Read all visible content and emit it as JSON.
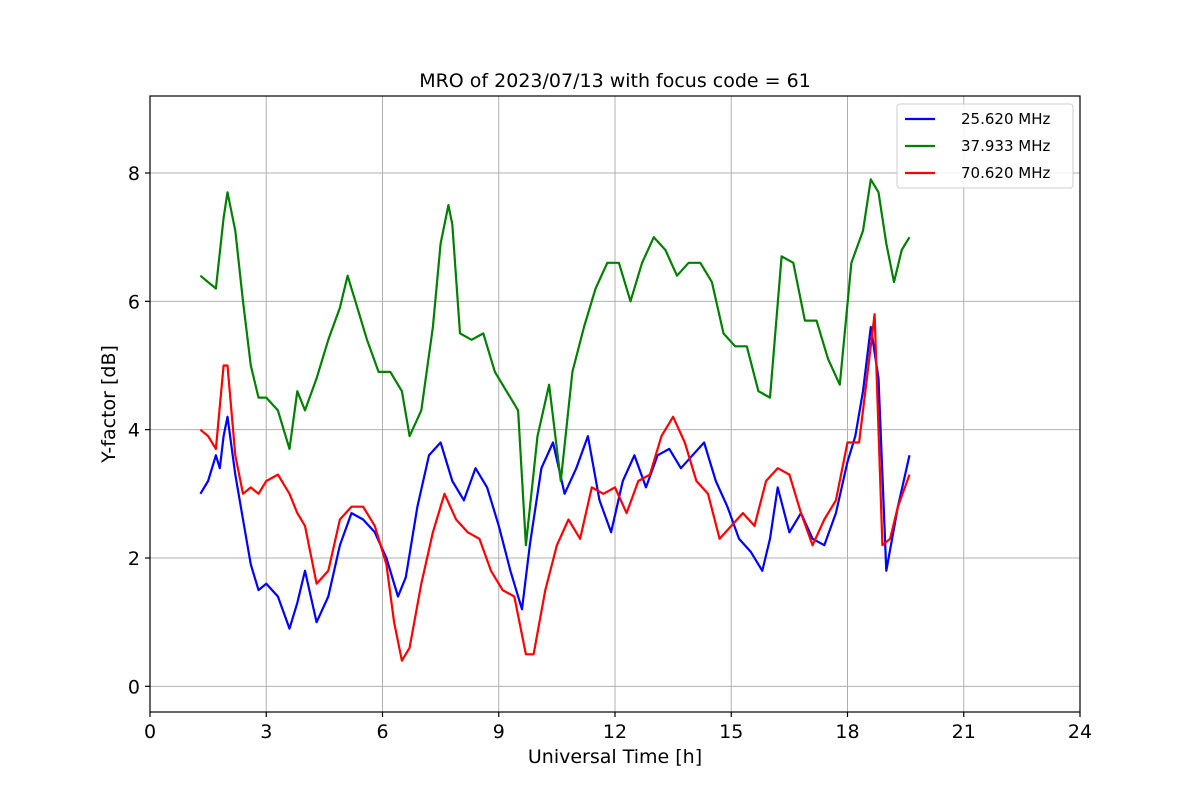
{
  "chart_data": {
    "type": "line",
    "title": "MRO of 2023/07/13 with focus code = 61",
    "xlabel": "Universal Time [h]",
    "ylabel": "Y-factor [dB]",
    "xlim": [
      0,
      24
    ],
    "ylim": [
      -0.4,
      9.2
    ],
    "xticks": [
      0,
      3,
      6,
      9,
      12,
      15,
      18,
      21,
      24
    ],
    "yticks": [
      0,
      2,
      4,
      6,
      8
    ],
    "grid": true,
    "legend_position": "top-right",
    "series": [
      {
        "name": "25.620 MHz",
        "color": "#0000ff",
        "x": [
          1.3,
          1.5,
          1.7,
          1.8,
          1.9,
          2.0,
          2.2,
          2.4,
          2.6,
          2.8,
          3.0,
          3.3,
          3.6,
          3.8,
          4.0,
          4.3,
          4.6,
          4.9,
          5.2,
          5.5,
          5.8,
          6.1,
          6.4,
          6.6,
          6.9,
          7.2,
          7.5,
          7.8,
          8.1,
          8.4,
          8.7,
          9.0,
          9.3,
          9.6,
          9.8,
          10.1,
          10.4,
          10.7,
          11.0,
          11.3,
          11.6,
          11.9,
          12.2,
          12.5,
          12.8,
          13.1,
          13.4,
          13.7,
          14.0,
          14.3,
          14.6,
          14.9,
          15.2,
          15.5,
          15.8,
          16.0,
          16.2,
          16.5,
          16.8,
          17.1,
          17.4,
          17.7,
          18.0,
          18.2,
          18.4,
          18.6,
          18.8,
          19.0,
          19.3,
          19.6
        ],
        "y": [
          3.0,
          3.2,
          3.6,
          3.4,
          3.9,
          4.2,
          3.3,
          2.6,
          1.9,
          1.5,
          1.6,
          1.4,
          0.9,
          1.3,
          1.8,
          1.0,
          1.4,
          2.2,
          2.7,
          2.6,
          2.4,
          2.0,
          1.4,
          1.7,
          2.8,
          3.6,
          3.8,
          3.2,
          2.9,
          3.4,
          3.1,
          2.5,
          1.8,
          1.2,
          2.2,
          3.4,
          3.8,
          3.0,
          3.4,
          3.9,
          2.9,
          2.4,
          3.2,
          3.6,
          3.1,
          3.6,
          3.7,
          3.4,
          3.6,
          3.8,
          3.2,
          2.8,
          2.3,
          2.1,
          1.8,
          2.3,
          3.1,
          2.4,
          2.7,
          2.3,
          2.2,
          2.7,
          3.5,
          3.9,
          4.6,
          5.6,
          4.8,
          1.8,
          2.8,
          3.6
        ]
      },
      {
        "name": "37.933 MHz",
        "color": "#008000",
        "x": [
          1.3,
          1.5,
          1.7,
          1.9,
          2.0,
          2.2,
          2.4,
          2.6,
          2.8,
          3.0,
          3.3,
          3.6,
          3.8,
          4.0,
          4.3,
          4.6,
          4.9,
          5.1,
          5.3,
          5.6,
          5.9,
          6.2,
          6.5,
          6.7,
          7.0,
          7.3,
          7.5,
          7.7,
          7.8,
          8.0,
          8.3,
          8.6,
          8.9,
          9.2,
          9.5,
          9.7,
          10.0,
          10.3,
          10.6,
          10.9,
          11.2,
          11.5,
          11.8,
          12.1,
          12.4,
          12.7,
          13.0,
          13.3,
          13.6,
          13.9,
          14.2,
          14.5,
          14.8,
          15.1,
          15.4,
          15.7,
          16.0,
          16.3,
          16.6,
          16.9,
          17.2,
          17.5,
          17.8,
          18.1,
          18.4,
          18.6,
          18.8,
          19.0,
          19.2,
          19.4,
          19.6
        ],
        "y": [
          6.4,
          6.3,
          6.2,
          7.3,
          7.7,
          7.1,
          6.0,
          5.0,
          4.5,
          4.5,
          4.3,
          3.7,
          4.6,
          4.3,
          4.8,
          5.4,
          5.9,
          6.4,
          6.0,
          5.4,
          4.9,
          4.9,
          4.6,
          3.9,
          4.3,
          5.6,
          6.9,
          7.5,
          7.2,
          5.5,
          5.4,
          5.5,
          4.9,
          4.6,
          4.3,
          2.2,
          3.9,
          4.7,
          3.2,
          4.9,
          5.6,
          6.2,
          6.6,
          6.6,
          6.0,
          6.6,
          7.0,
          6.8,
          6.4,
          6.6,
          6.6,
          6.3,
          5.5,
          5.3,
          5.3,
          4.6,
          4.5,
          6.7,
          6.6,
          5.7,
          5.7,
          5.1,
          4.7,
          6.6,
          7.1,
          7.9,
          7.7,
          6.9,
          6.3,
          6.8,
          7.0
        ]
      },
      {
        "name": "70.620 MHz",
        "color": "#ff0000",
        "x": [
          1.3,
          1.5,
          1.7,
          1.9,
          2.0,
          2.2,
          2.4,
          2.6,
          2.8,
          3.0,
          3.3,
          3.6,
          3.8,
          4.0,
          4.3,
          4.6,
          4.9,
          5.2,
          5.5,
          5.8,
          6.1,
          6.3,
          6.5,
          6.7,
          7.0,
          7.3,
          7.6,
          7.9,
          8.2,
          8.5,
          8.8,
          9.1,
          9.4,
          9.7,
          9.9,
          10.2,
          10.5,
          10.8,
          11.1,
          11.4,
          11.7,
          12.0,
          12.3,
          12.6,
          12.9,
          13.2,
          13.5,
          13.8,
          14.1,
          14.4,
          14.7,
          15.0,
          15.3,
          15.6,
          15.9,
          16.2,
          16.5,
          16.8,
          17.1,
          17.4,
          17.7,
          18.0,
          18.3,
          18.5,
          18.7,
          18.9,
          19.1,
          19.3,
          19.6
        ],
        "y": [
          4.0,
          3.9,
          3.7,
          5.0,
          5.0,
          3.6,
          3.0,
          3.1,
          3.0,
          3.2,
          3.3,
          3.0,
          2.7,
          2.5,
          1.6,
          1.8,
          2.6,
          2.8,
          2.8,
          2.5,
          1.9,
          1.0,
          0.4,
          0.6,
          1.6,
          2.4,
          3.0,
          2.6,
          2.4,
          2.3,
          1.8,
          1.5,
          1.4,
          0.5,
          0.5,
          1.5,
          2.2,
          2.6,
          2.3,
          3.1,
          3.0,
          3.1,
          2.7,
          3.2,
          3.3,
          3.9,
          4.2,
          3.8,
          3.2,
          3.0,
          2.3,
          2.5,
          2.7,
          2.5,
          3.2,
          3.4,
          3.3,
          2.7,
          2.2,
          2.6,
          2.9,
          3.8,
          3.8,
          4.8,
          5.8,
          2.2,
          2.3,
          2.8,
          3.3
        ]
      }
    ]
  }
}
